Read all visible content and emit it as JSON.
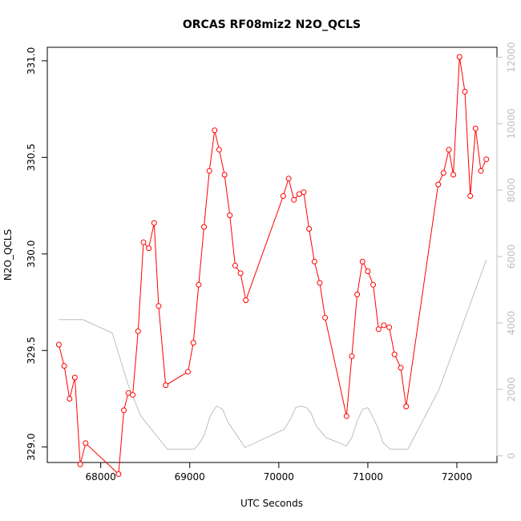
{
  "chart_data": {
    "type": "line",
    "title": "ORCAS RF08miz2 N2O_QCLS",
    "xlabel": "UTC Seconds",
    "ylabel": "N2O_QCLS",
    "xlim": [
      67400,
      72450
    ],
    "ylim": [
      328.92,
      331.07
    ],
    "y2lim": [
      -200,
      12300
    ],
    "x_ticks": [
      68000,
      69000,
      70000,
      71000,
      72000
    ],
    "x_tick_labels": [
      "68000",
      "69000",
      "70000",
      "71000",
      "72000"
    ],
    "y_ticks": [
      329.0,
      329.5,
      330.0,
      330.5,
      331.0
    ],
    "y_tick_labels": [
      "329.0",
      "329.5",
      "330.0",
      "330.5",
      "331.0"
    ],
    "y2_ticks": [
      0,
      2000,
      4000,
      6000,
      8000,
      10000,
      12000
    ],
    "y2_tick_labels": [
      "0",
      "2000",
      "4000",
      "6000",
      "8000",
      "10000",
      "12000"
    ],
    "grid": false,
    "legend": "none",
    "series": [
      {
        "color": "#ff0000",
        "markers": "open-circle",
        "axis": "left",
        "x": [
          67530,
          67590,
          67650,
          67710,
          67770,
          67830,
          68200,
          68260,
          68310,
          68360,
          68420,
          68480,
          68540,
          68600,
          68650,
          68730,
          68980,
          69040,
          69100,
          69160,
          69220,
          69280,
          69330,
          69390,
          69450,
          69510,
          69570,
          69630,
          70050,
          70110,
          70170,
          70230,
          70280,
          70340,
          70400,
          70460,
          70520,
          70760,
          70820,
          70880,
          70940,
          71000,
          71060,
          71120,
          71180,
          71240,
          71300,
          71370,
          71430,
          71790,
          71850,
          71910,
          71960,
          72030,
          72090,
          72150,
          72210,
          72270,
          72330
        ],
        "y": [
          329.53,
          329.42,
          329.25,
          329.36,
          328.91,
          329.02,
          328.86,
          329.19,
          329.28,
          329.27,
          329.6,
          330.06,
          330.03,
          330.16,
          329.73,
          329.32,
          329.39,
          329.54,
          329.84,
          330.14,
          330.43,
          330.64,
          330.54,
          330.41,
          330.2,
          329.94,
          329.9,
          329.76,
          330.3,
          330.39,
          330.28,
          330.31,
          330.32,
          330.13,
          329.96,
          329.85,
          329.67,
          329.16,
          329.47,
          329.79,
          329.96,
          329.91,
          329.84,
          329.61,
          329.63,
          329.62,
          329.48,
          329.41,
          329.21,
          330.36,
          330.42,
          330.54,
          330.41,
          331.02,
          330.84,
          330.3,
          330.65,
          330.43,
          330.49
        ]
      },
      {
        "color": "#bebebe",
        "markers": "none",
        "axis": "right",
        "x": [
          67530,
          67800,
          68130,
          68300,
          68450,
          68600,
          68750,
          68960,
          69050,
          69100,
          69160,
          69230,
          69300,
          69370,
          69430,
          69510,
          69620,
          69860,
          70060,
          70130,
          70190,
          70250,
          70310,
          70360,
          70420,
          70530,
          70760,
          70820,
          70880,
          70940,
          71000,
          71050,
          71120,
          71170,
          71250,
          71350,
          71450,
          71800,
          72330
        ],
        "y": [
          4100,
          4100,
          3700,
          2200,
          1200,
          700,
          200,
          200,
          200,
          350,
          600,
          1200,
          1500,
          1400,
          1000,
          700,
          250,
          550,
          800,
          1100,
          1450,
          1500,
          1450,
          1300,
          900,
          550,
          300,
          550,
          1050,
          1400,
          1450,
          1200,
          800,
          400,
          200,
          200,
          200,
          2000,
          5900
        ]
      }
    ]
  }
}
